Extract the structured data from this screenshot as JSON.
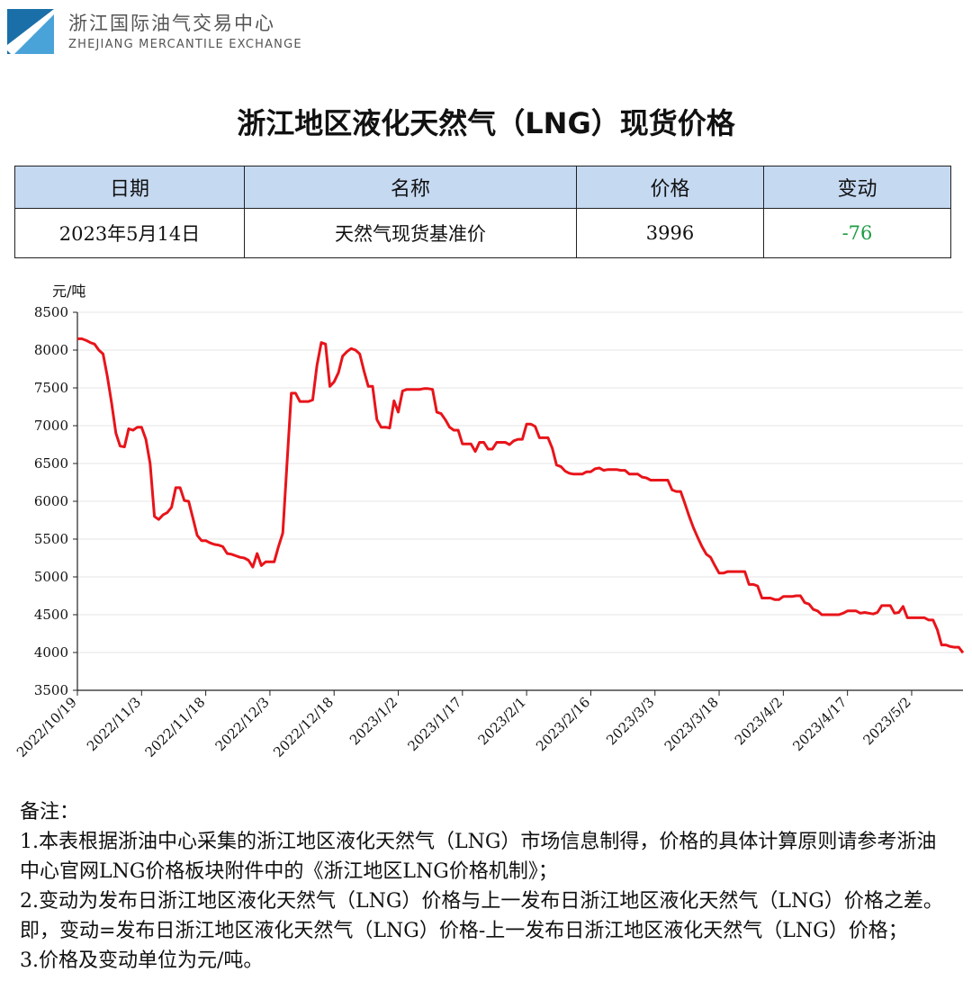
{
  "header": {
    "org_cn": "浙江国际油气交易中心",
    "org_en": "ZHEJIANG MERCANTILE EXCHANGE",
    "logo_colors": [
      "#1b6fa8",
      "#4aa3d8"
    ]
  },
  "title": "浙江地区液化天然气（LNG）现货价格",
  "table": {
    "headers": [
      "日期",
      "名称",
      "价格",
      "变动"
    ],
    "row": {
      "date": "2023年5月14日",
      "name": "天然气现货基准价",
      "price": "3996",
      "change": "-76"
    },
    "header_bg": "#c5d9f1",
    "change_color": "#1e9c45"
  },
  "chart_data": {
    "type": "line",
    "unit_label": "元/吨",
    "ylim": [
      3500,
      8500
    ],
    "yticks": [
      3500,
      4000,
      4500,
      5000,
      5500,
      6000,
      6500,
      7000,
      7500,
      8000,
      8500
    ],
    "xticks": [
      "2022/10/19",
      "2022/11/3",
      "2022/11/18",
      "2022/12/3",
      "2022/12/18",
      "2023/1/2",
      "2023/1/17",
      "2023/2/1",
      "2023/2/16",
      "2023/3/3",
      "2023/3/18",
      "2023/4/2",
      "2023/4/17",
      "2023/5/2"
    ],
    "x_start": "2022/10/19",
    "x_end": "2023/5/14",
    "line_color": "#e8141a",
    "grid": "horizontal",
    "series": [
      {
        "points": [
          [
            "2022/10/19",
            8150
          ],
          [
            "2022/10/20",
            8150
          ],
          [
            "2022/10/21",
            8130
          ],
          [
            "2022/10/22",
            8100
          ],
          [
            "2022/10/23",
            8080
          ],
          [
            "2022/10/24",
            8000
          ],
          [
            "2022/10/25",
            7950
          ],
          [
            "2022/10/26",
            7650
          ],
          [
            "2022/10/27",
            7300
          ],
          [
            "2022/10/28",
            6900
          ],
          [
            "2022/10/29",
            6730
          ],
          [
            "2022/10/30",
            6720
          ],
          [
            "2022/10/31",
            6960
          ],
          [
            "2022/11/1",
            6940
          ],
          [
            "2022/11/2",
            6980
          ],
          [
            "2022/11/3",
            6980
          ],
          [
            "2022/11/4",
            6820
          ],
          [
            "2022/11/5",
            6500
          ],
          [
            "2022/11/6",
            5800
          ],
          [
            "2022/11/7",
            5760
          ],
          [
            "2022/11/8",
            5820
          ],
          [
            "2022/11/9",
            5850
          ],
          [
            "2022/11/10",
            5920
          ],
          [
            "2022/11/11",
            6180
          ],
          [
            "2022/11/12",
            6180
          ],
          [
            "2022/11/13",
            6010
          ],
          [
            "2022/11/14",
            6000
          ],
          [
            "2022/11/15",
            5780
          ],
          [
            "2022/11/16",
            5550
          ],
          [
            "2022/11/17",
            5480
          ],
          [
            "2022/11/18",
            5480
          ],
          [
            "2022/11/19",
            5450
          ],
          [
            "2022/11/20",
            5430
          ],
          [
            "2022/11/21",
            5420
          ],
          [
            "2022/11/22",
            5400
          ],
          [
            "2022/11/23",
            5310
          ],
          [
            "2022/11/24",
            5300
          ],
          [
            "2022/11/25",
            5280
          ],
          [
            "2022/11/26",
            5260
          ],
          [
            "2022/11/27",
            5250
          ],
          [
            "2022/11/28",
            5220
          ],
          [
            "2022/11/29",
            5130
          ],
          [
            "2022/11/30",
            5310
          ],
          [
            "2022/12/1",
            5150
          ],
          [
            "2022/12/2",
            5200
          ],
          [
            "2022/12/3",
            5200
          ],
          [
            "2022/12/4",
            5200
          ],
          [
            "2022/12/5",
            5400
          ],
          [
            "2022/12/6",
            5580
          ],
          [
            "2022/12/7",
            6500
          ],
          [
            "2022/12/8",
            7430
          ],
          [
            "2022/12/9",
            7430
          ],
          [
            "2022/12/10",
            7320
          ],
          [
            "2022/12/11",
            7320
          ],
          [
            "2022/12/12",
            7320
          ],
          [
            "2022/12/13",
            7340
          ],
          [
            "2022/12/14",
            7800
          ],
          [
            "2022/12/15",
            8100
          ],
          [
            "2022/12/16",
            8080
          ],
          [
            "2022/12/17",
            7520
          ],
          [
            "2022/12/18",
            7580
          ],
          [
            "2022/12/19",
            7700
          ],
          [
            "2022/12/20",
            7920
          ],
          [
            "2022/12/21",
            7980
          ],
          [
            "2022/12/22",
            8020
          ],
          [
            "2022/12/23",
            8000
          ],
          [
            "2022/12/24",
            7950
          ],
          [
            "2022/12/25",
            7720
          ],
          [
            "2022/12/26",
            7520
          ],
          [
            "2022/12/27",
            7520
          ],
          [
            "2022/12/28",
            7080
          ],
          [
            "2022/12/29",
            6980
          ],
          [
            "2022/12/30",
            6980
          ],
          [
            "2022/12/31",
            6970
          ],
          [
            "2023/1/1",
            7330
          ],
          [
            "2023/1/2",
            7180
          ],
          [
            "2023/1/3",
            7460
          ],
          [
            "2023/1/4",
            7480
          ],
          [
            "2023/1/5",
            7480
          ],
          [
            "2023/1/6",
            7480
          ],
          [
            "2023/1/7",
            7480
          ],
          [
            "2023/1/8",
            7490
          ],
          [
            "2023/1/9",
            7490
          ],
          [
            "2023/1/10",
            7480
          ],
          [
            "2023/1/11",
            7180
          ],
          [
            "2023/1/12",
            7160
          ],
          [
            "2023/1/13",
            7080
          ],
          [
            "2023/1/14",
            6980
          ],
          [
            "2023/1/15",
            6940
          ],
          [
            "2023/1/16",
            6940
          ],
          [
            "2023/1/17",
            6760
          ],
          [
            "2023/1/18",
            6760
          ],
          [
            "2023/1/19",
            6760
          ],
          [
            "2023/1/20",
            6660
          ],
          [
            "2023/1/21",
            6780
          ],
          [
            "2023/1/22",
            6780
          ],
          [
            "2023/1/23",
            6690
          ],
          [
            "2023/1/24",
            6690
          ],
          [
            "2023/1/25",
            6780
          ],
          [
            "2023/1/26",
            6780
          ],
          [
            "2023/1/27",
            6780
          ],
          [
            "2023/1/28",
            6750
          ],
          [
            "2023/1/29",
            6800
          ],
          [
            "2023/1/30",
            6820
          ],
          [
            "2023/1/31",
            6820
          ],
          [
            "2023/2/1",
            7020
          ],
          [
            "2023/2/2",
            7020
          ],
          [
            "2023/2/3",
            6990
          ],
          [
            "2023/2/4",
            6840
          ],
          [
            "2023/2/5",
            6840
          ],
          [
            "2023/2/6",
            6840
          ],
          [
            "2023/2/7",
            6700
          ],
          [
            "2023/2/8",
            6480
          ],
          [
            "2023/2/9",
            6460
          ],
          [
            "2023/2/10",
            6400
          ],
          [
            "2023/2/11",
            6370
          ],
          [
            "2023/2/12",
            6360
          ],
          [
            "2023/2/13",
            6360
          ],
          [
            "2023/2/14",
            6360
          ],
          [
            "2023/2/15",
            6390
          ],
          [
            "2023/2/16",
            6390
          ],
          [
            "2023/2/17",
            6430
          ],
          [
            "2023/2/18",
            6440
          ],
          [
            "2023/2/19",
            6410
          ],
          [
            "2023/2/20",
            6420
          ],
          [
            "2023/2/21",
            6420
          ],
          [
            "2023/2/22",
            6420
          ],
          [
            "2023/2/23",
            6410
          ],
          [
            "2023/2/24",
            6410
          ],
          [
            "2023/2/25",
            6360
          ],
          [
            "2023/2/26",
            6360
          ],
          [
            "2023/2/27",
            6360
          ],
          [
            "2023/2/28",
            6320
          ],
          [
            "2023/3/1",
            6310
          ],
          [
            "2023/3/2",
            6280
          ],
          [
            "2023/3/3",
            6280
          ],
          [
            "2023/3/4",
            6280
          ],
          [
            "2023/3/5",
            6280
          ],
          [
            "2023/3/6",
            6280
          ],
          [
            "2023/3/7",
            6150
          ],
          [
            "2023/3/8",
            6130
          ],
          [
            "2023/3/9",
            6130
          ],
          [
            "2023/3/10",
            5970
          ],
          [
            "2023/3/11",
            5800
          ],
          [
            "2023/3/12",
            5650
          ],
          [
            "2023/3/13",
            5520
          ],
          [
            "2023/3/14",
            5400
          ],
          [
            "2023/3/15",
            5300
          ],
          [
            "2023/3/16",
            5260
          ],
          [
            "2023/3/17",
            5150
          ],
          [
            "2023/3/18",
            5050
          ],
          [
            "2023/3/19",
            5050
          ],
          [
            "2023/3/20",
            5070
          ],
          [
            "2023/3/21",
            5070
          ],
          [
            "2023/3/22",
            5070
          ],
          [
            "2023/3/23",
            5070
          ],
          [
            "2023/3/24",
            5070
          ],
          [
            "2023/3/25",
            4900
          ],
          [
            "2023/3/26",
            4900
          ],
          [
            "2023/3/27",
            4880
          ],
          [
            "2023/3/28",
            4720
          ],
          [
            "2023/3/29",
            4720
          ],
          [
            "2023/3/30",
            4720
          ],
          [
            "2023/3/31",
            4700
          ],
          [
            "2023/4/1",
            4700
          ],
          [
            "2023/4/2",
            4740
          ],
          [
            "2023/4/3",
            4740
          ],
          [
            "2023/4/4",
            4740
          ],
          [
            "2023/4/5",
            4750
          ],
          [
            "2023/4/6",
            4750
          ],
          [
            "2023/4/7",
            4660
          ],
          [
            "2023/4/8",
            4640
          ],
          [
            "2023/4/9",
            4570
          ],
          [
            "2023/4/10",
            4550
          ],
          [
            "2023/4/11",
            4500
          ],
          [
            "2023/4/12",
            4500
          ],
          [
            "2023/4/13",
            4500
          ],
          [
            "2023/4/14",
            4500
          ],
          [
            "2023/4/15",
            4500
          ],
          [
            "2023/4/16",
            4520
          ],
          [
            "2023/4/17",
            4550
          ],
          [
            "2023/4/18",
            4550
          ],
          [
            "2023/4/19",
            4550
          ],
          [
            "2023/4/20",
            4520
          ],
          [
            "2023/4/21",
            4530
          ],
          [
            "2023/4/22",
            4520
          ],
          [
            "2023/4/23",
            4510
          ],
          [
            "2023/4/24",
            4530
          ],
          [
            "2023/4/25",
            4620
          ],
          [
            "2023/4/26",
            4620
          ],
          [
            "2023/4/27",
            4620
          ],
          [
            "2023/4/28",
            4520
          ],
          [
            "2023/4/29",
            4530
          ],
          [
            "2023/4/30",
            4610
          ],
          [
            "2023/5/1",
            4460
          ],
          [
            "2023/5/2",
            4460
          ],
          [
            "2023/5/3",
            4460
          ],
          [
            "2023/5/4",
            4460
          ],
          [
            "2023/5/5",
            4460
          ],
          [
            "2023/5/6",
            4430
          ],
          [
            "2023/5/7",
            4430
          ],
          [
            "2023/5/8",
            4300
          ],
          [
            "2023/5/9",
            4100
          ],
          [
            "2023/5/10",
            4100
          ],
          [
            "2023/5/11",
            4080
          ],
          [
            "2023/5/12",
            4070
          ],
          [
            "2023/5/13",
            4070
          ],
          [
            "2023/5/14",
            3996
          ]
        ]
      }
    ]
  },
  "notes": {
    "heading": "备注：",
    "items": [
      "1.本表根据浙油中心采集的浙江地区液化天然气（LNG）市场信息制得，价格的具体计算原则请参考浙油中心官网LNG价格板块附件中的《浙江地区LNG价格机制》；",
      "2.变动为发布日浙江地区液化天然气（LNG）价格与上一发布日浙江地区液化天然气（LNG）价格之差。即，变动=发布日浙江地区液化天然气（LNG）价格-上一发布日浙江地区液化天然气（LNG）价格；",
      "3.价格及变动单位为元/吨。"
    ]
  }
}
